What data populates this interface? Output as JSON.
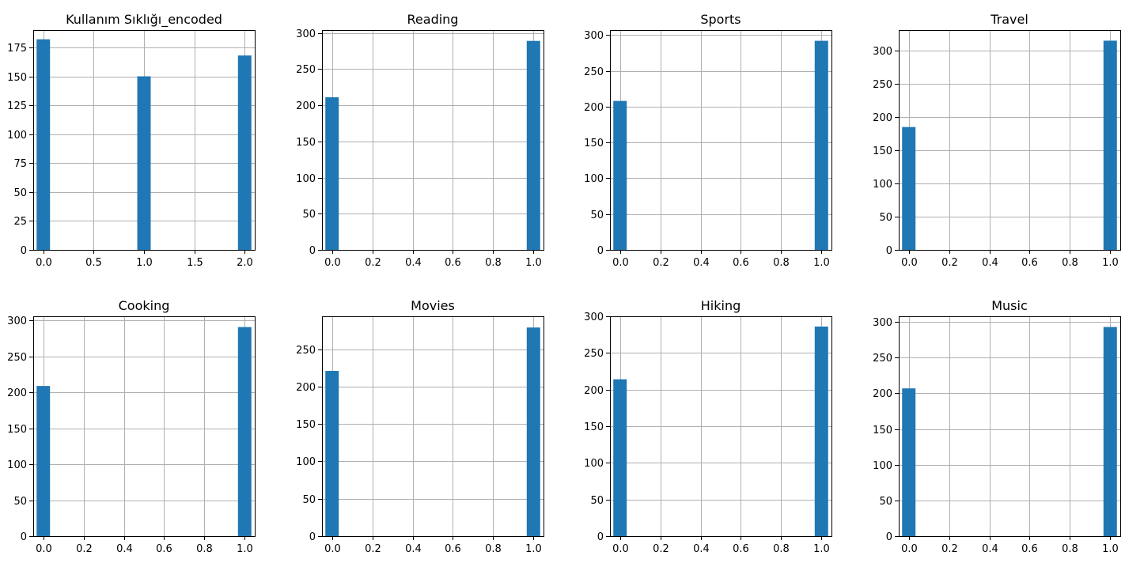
{
  "chart_data": [
    {
      "type": "bar",
      "title": "Kullanım Sıklığı_encoded",
      "xlabel": "",
      "ylabel": "",
      "xlim": [
        -0.1,
        2.1
      ],
      "ylim": [
        0,
        190
      ],
      "xticks": [
        0.0,
        0.5,
        1.0,
        1.5,
        2.0
      ],
      "xtick_labels": [
        "0.0",
        "0.5",
        "1.0",
        "1.5",
        "2.0"
      ],
      "yticks": [
        0,
        25,
        50,
        75,
        100,
        125,
        150,
        175
      ],
      "ytick_labels": [
        "0",
        "25",
        "50",
        "75",
        "100",
        "125",
        "150",
        "175"
      ],
      "bin_width": 0.1333,
      "bins": [
        {
          "x": 0,
          "count": 182
        },
        {
          "x": 1,
          "count": 150
        },
        {
          "x": 2,
          "count": 168
        }
      ],
      "grid": true
    },
    {
      "type": "bar",
      "title": "Reading",
      "xlabel": "",
      "ylabel": "",
      "xlim": [
        -0.05,
        1.05
      ],
      "ylim": [
        0,
        304
      ],
      "xticks": [
        0.0,
        0.2,
        0.4,
        0.6,
        0.8,
        1.0
      ],
      "xtick_labels": [
        "0.0",
        "0.2",
        "0.4",
        "0.6",
        "0.8",
        "1.0"
      ],
      "yticks": [
        0,
        50,
        100,
        150,
        200,
        250,
        300
      ],
      "ytick_labels": [
        "0",
        "50",
        "100",
        "150",
        "200",
        "250",
        "300"
      ],
      "bin_width": 0.0667,
      "bins": [
        {
          "x": 0,
          "count": 211
        },
        {
          "x": 1,
          "count": 289
        }
      ],
      "grid": true
    },
    {
      "type": "bar",
      "title": "Sports",
      "xlabel": "",
      "ylabel": "",
      "xlim": [
        -0.05,
        1.05
      ],
      "ylim": [
        0,
        307
      ],
      "xticks": [
        0.0,
        0.2,
        0.4,
        0.6,
        0.8,
        1.0
      ],
      "xtick_labels": [
        "0.0",
        "0.2",
        "0.4",
        "0.6",
        "0.8",
        "1.0"
      ],
      "yticks": [
        0,
        50,
        100,
        150,
        200,
        250,
        300
      ],
      "ytick_labels": [
        "0",
        "50",
        "100",
        "150",
        "200",
        "250",
        "300"
      ],
      "bin_width": 0.0667,
      "bins": [
        {
          "x": 0,
          "count": 208
        },
        {
          "x": 1,
          "count": 292
        }
      ],
      "grid": true
    },
    {
      "type": "bar",
      "title": "Travel",
      "xlabel": "",
      "ylabel": "",
      "xlim": [
        -0.05,
        1.05
      ],
      "ylim": [
        0,
        331
      ],
      "xticks": [
        0.0,
        0.2,
        0.4,
        0.6,
        0.8,
        1.0
      ],
      "xtick_labels": [
        "0.0",
        "0.2",
        "0.4",
        "0.6",
        "0.8",
        "1.0"
      ],
      "yticks": [
        0,
        50,
        100,
        150,
        200,
        250,
        300
      ],
      "ytick_labels": [
        "0",
        "50",
        "100",
        "150",
        "200",
        "250",
        "300"
      ],
      "bin_width": 0.0667,
      "bins": [
        {
          "x": 0,
          "count": 185
        },
        {
          "x": 1,
          "count": 315
        }
      ],
      "grid": true
    },
    {
      "type": "bar",
      "title": "Cooking",
      "xlabel": "",
      "ylabel": "",
      "xlim": [
        -0.05,
        1.05
      ],
      "ylim": [
        0,
        306
      ],
      "xticks": [
        0.0,
        0.2,
        0.4,
        0.6,
        0.8,
        1.0
      ],
      "xtick_labels": [
        "0.0",
        "0.2",
        "0.4",
        "0.6",
        "0.8",
        "1.0"
      ],
      "yticks": [
        0,
        50,
        100,
        150,
        200,
        250,
        300
      ],
      "ytick_labels": [
        "0",
        "50",
        "100",
        "150",
        "200",
        "250",
        "300"
      ],
      "bin_width": 0.0667,
      "bins": [
        {
          "x": 0,
          "count": 209
        },
        {
          "x": 1,
          "count": 291
        }
      ],
      "grid": true
    },
    {
      "type": "bar",
      "title": "Movies",
      "xlabel": "",
      "ylabel": "",
      "xlim": [
        -0.05,
        1.05
      ],
      "ylim": [
        0,
        294
      ],
      "xticks": [
        0.0,
        0.2,
        0.4,
        0.6,
        0.8,
        1.0
      ],
      "xtick_labels": [
        "0.0",
        "0.2",
        "0.4",
        "0.6",
        "0.8",
        "1.0"
      ],
      "yticks": [
        0,
        50,
        100,
        150,
        200,
        250
      ],
      "ytick_labels": [
        "0",
        "50",
        "100",
        "150",
        "200",
        "250"
      ],
      "bin_width": 0.0667,
      "bins": [
        {
          "x": 0,
          "count": 221
        },
        {
          "x": 1,
          "count": 279
        }
      ],
      "grid": true
    },
    {
      "type": "bar",
      "title": "Hiking",
      "xlabel": "",
      "ylabel": "",
      "xlim": [
        -0.05,
        1.05
      ],
      "ylim": [
        0,
        300
      ],
      "xticks": [
        0.0,
        0.2,
        0.4,
        0.6,
        0.8,
        1.0
      ],
      "xtick_labels": [
        "0.0",
        "0.2",
        "0.4",
        "0.6",
        "0.8",
        "1.0"
      ],
      "yticks": [
        0,
        50,
        100,
        150,
        200,
        250,
        300
      ],
      "ytick_labels": [
        "0",
        "50",
        "100",
        "150",
        "200",
        "250",
        "300"
      ],
      "bin_width": 0.0667,
      "bins": [
        {
          "x": 0,
          "count": 214
        },
        {
          "x": 1,
          "count": 286
        }
      ],
      "grid": true
    },
    {
      "type": "bar",
      "title": "Music",
      "xlabel": "",
      "ylabel": "",
      "xlim": [
        -0.05,
        1.05
      ],
      "ylim": [
        0,
        308
      ],
      "xticks": [
        0.0,
        0.2,
        0.4,
        0.6,
        0.8,
        1.0
      ],
      "xtick_labels": [
        "0.0",
        "0.2",
        "0.4",
        "0.6",
        "0.8",
        "1.0"
      ],
      "yticks": [
        0,
        50,
        100,
        150,
        200,
        250,
        300
      ],
      "ytick_labels": [
        "0",
        "50",
        "100",
        "150",
        "200",
        "250",
        "300"
      ],
      "bin_width": 0.0667,
      "bins": [
        {
          "x": 0,
          "count": 207
        },
        {
          "x": 1,
          "count": 293
        }
      ],
      "grid": true
    }
  ],
  "colors": {
    "bar": "#1f77b4",
    "grid": "#b0b0b0",
    "spine": "#000000",
    "background": "#ffffff"
  }
}
